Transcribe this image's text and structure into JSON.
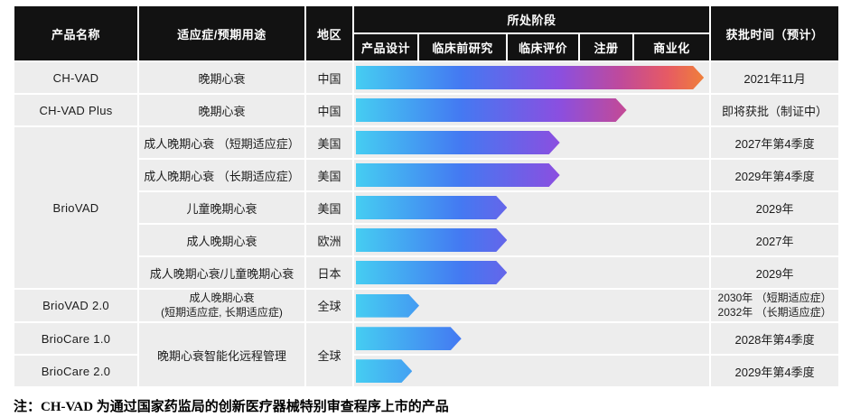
{
  "header": {
    "product": "产品名称",
    "indication": "适应症/预期用途",
    "region": "地区",
    "stage_group": "所处阶段",
    "stages": [
      "产品设计",
      "临床前研究",
      "临床评价",
      "注册",
      "商业化"
    ],
    "approval": "获批时间（预计）"
  },
  "rows": [
    {
      "product": "CH-VAD",
      "indication": "晚期心衰",
      "region": "中国",
      "bar_pct": 99,
      "approval": "2021年11月"
    },
    {
      "product": "CH-VAD Plus",
      "indication": "晚期心衰",
      "region": "中国",
      "bar_pct": 77,
      "approval": "即将获批（制证中）"
    },
    {
      "product": "BrioVAD",
      "indication": "成人晚期心衰 （短期适应症）",
      "region": "美国",
      "bar_pct": 58,
      "approval": "2027年第4季度"
    },
    {
      "indication": "成人晚期心衰 （长期适应症）",
      "region": "美国",
      "bar_pct": 58,
      "approval": "2029年第4季度"
    },
    {
      "indication": "儿童晚期心衰",
      "region": "美国",
      "bar_pct": 43,
      "approval": "2029年"
    },
    {
      "indication": "成人晚期心衰",
      "region": "欧洲",
      "bar_pct": 43,
      "approval": "2027年"
    },
    {
      "indication": "成人晚期心衰/儿童晚期心衰",
      "region": "日本",
      "bar_pct": 43,
      "approval": "2029年"
    },
    {
      "product": "BrioVAD 2.0",
      "indication": "成人晚期心衰\n(短期适应症, 长期适应症)",
      "region": "全球",
      "bar_pct": 18,
      "approval": "2030年 （短期适应症）\n2032年 （长期适应症）"
    },
    {
      "product": "BrioCare 1.0",
      "indication": "晚期心衰智能化远程管理",
      "region": "全球",
      "bar_pct": 30,
      "approval": "2028年第4季度"
    },
    {
      "product": "BrioCare 2.0",
      "bar_pct": 16,
      "approval": "2029年第4季度"
    }
  ],
  "note": "注：CH-VAD 为通过国家药监局的创新医疗器械特别审查程序上市的产品",
  "colors": {
    "header_bg": "#121212",
    "row_bg": "#ededed",
    "bar_gradient": [
      "#45cdf2",
      "#4479f2",
      "#8a4fe0",
      "#c04a9a",
      "#f08138"
    ]
  },
  "chart_data": {
    "type": "bar",
    "title": "所处阶段",
    "stages": [
      "产品设计",
      "临床前研究",
      "临床评价",
      "注册",
      "商业化"
    ],
    "rows": [
      {
        "product": "CH-VAD",
        "indication": "晚期心衰",
        "region": "中国",
        "stage_reached": "商业化",
        "progress_pct": 99,
        "approval": "2021年11月"
      },
      {
        "product": "CH-VAD Plus",
        "indication": "晚期心衰",
        "region": "中国",
        "stage_reached": "注册",
        "progress_pct": 77,
        "approval": "即将获批（制证中）"
      },
      {
        "product": "BrioVAD",
        "indication": "成人晚期心衰（短期适应症）",
        "region": "美国",
        "stage_reached": "临床评价",
        "progress_pct": 58,
        "approval": "2027年第4季度"
      },
      {
        "product": "BrioVAD",
        "indication": "成人晚期心衰（长期适应症）",
        "region": "美国",
        "stage_reached": "临床评价",
        "progress_pct": 58,
        "approval": "2029年第4季度"
      },
      {
        "product": "BrioVAD",
        "indication": "儿童晚期心衰",
        "region": "美国",
        "stage_reached": "临床前研究",
        "progress_pct": 43,
        "approval": "2029年"
      },
      {
        "product": "BrioVAD",
        "indication": "成人晚期心衰",
        "region": "欧洲",
        "stage_reached": "临床前研究",
        "progress_pct": 43,
        "approval": "2027年"
      },
      {
        "product": "BrioVAD",
        "indication": "成人晚期心衰/儿童晚期心衰",
        "region": "日本",
        "stage_reached": "临床前研究",
        "progress_pct": 43,
        "approval": "2029年"
      },
      {
        "product": "BrioVAD 2.0",
        "indication": "成人晚期心衰 (短期适应症, 长期适应症)",
        "region": "全球",
        "stage_reached": "产品设计",
        "progress_pct": 18,
        "approval": "2030年（短期适应症）/ 2032年（长期适应症）"
      },
      {
        "product": "BrioCare 1.0",
        "indication": "晚期心衰智能化远程管理",
        "region": "全球",
        "stage_reached": "临床前研究",
        "progress_pct": 30,
        "approval": "2028年第4季度"
      },
      {
        "product": "BrioCare 2.0",
        "indication": "晚期心衰智能化远程管理",
        "region": "全球",
        "stage_reached": "产品设计",
        "progress_pct": 16,
        "approval": "2029年第4季度"
      }
    ]
  }
}
